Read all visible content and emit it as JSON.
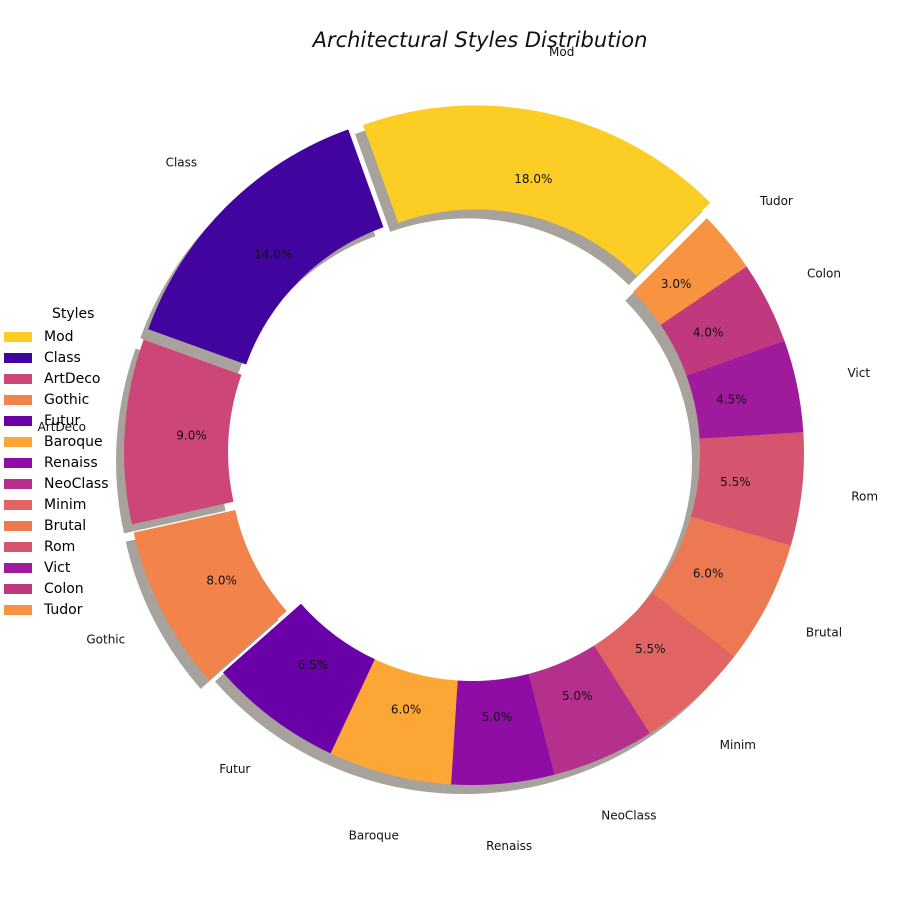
{
  "chart_data": {
    "type": "pie",
    "title": "Architectural Styles Distribution",
    "legend_title": "Styles",
    "legend_position": "left",
    "labels": [
      "Mod",
      "Class",
      "ArtDeco",
      "Gothic",
      "Futur",
      "Baroque",
      "Renaiss",
      "NeoClass",
      "Minim",
      "Brutal",
      "Rom",
      "Vict",
      "Colon",
      "Tudor"
    ],
    "values": [
      18.0,
      14.0,
      9.0,
      8.0,
      6.5,
      6.0,
      5.0,
      5.0,
      5.5,
      6.0,
      5.5,
      4.5,
      4.0,
      3.0
    ],
    "pct_labels": [
      "18.0%",
      "14.0%",
      "9.0%",
      "8.0%",
      "6.5%",
      "6.0%",
      "5.0%",
      "5.0%",
      "5.5%",
      "6.0%",
      "5.5%",
      "4.5%",
      "4.0%",
      "3.0%"
    ],
    "colors": [
      "#fccd25",
      "#42049e",
      "#cc4778",
      "#f2844b",
      "#6a00a8",
      "#fca636",
      "#8f0da4",
      "#b52f8c",
      "#e16462",
      "#ed7953",
      "#d5546e",
      "#a01a9c",
      "#c0397f",
      "#f89441"
    ],
    "exploded": [
      "Mod",
      "Class",
      "ArtDeco",
      "Gothic"
    ],
    "shadow": true,
    "donut": true
  }
}
